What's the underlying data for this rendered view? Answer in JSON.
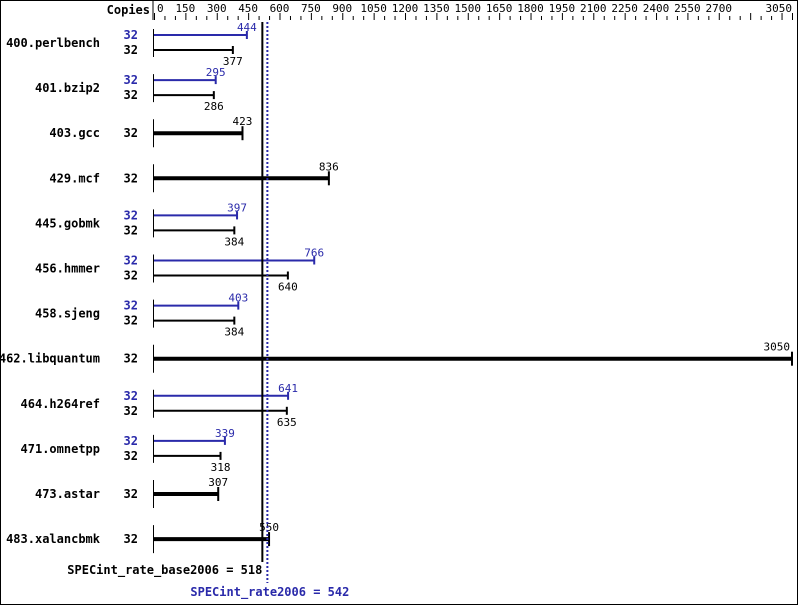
{
  "chart_data": {
    "type": "bar",
    "orientation": "horizontal",
    "axis_label": "Copies",
    "xlim": [
      0,
      3050
    ],
    "ticks": [
      0,
      150,
      300,
      450,
      600,
      750,
      900,
      1050,
      1200,
      1350,
      1500,
      1650,
      1800,
      1950,
      2100,
      2250,
      2400,
      2550,
      2700,
      3050
    ],
    "minor_tick_step": 50,
    "colors": {
      "base": "#000000",
      "peak": "#2a2aaa"
    },
    "benchmarks": [
      {
        "name": "400.perlbench",
        "peak_copies": "32",
        "peak": 444,
        "base_copies": "32",
        "base": 377
      },
      {
        "name": "401.bzip2",
        "peak_copies": "32",
        "peak": 295,
        "base_copies": "32",
        "base": 286
      },
      {
        "name": "403.gcc",
        "base_copies": "32",
        "base": 423
      },
      {
        "name": "429.mcf",
        "base_copies": "32",
        "base": 836
      },
      {
        "name": "445.gobmk",
        "peak_copies": "32",
        "peak": 397,
        "base_copies": "32",
        "base": 384
      },
      {
        "name": "456.hmmer",
        "peak_copies": "32",
        "peak": 766,
        "base_copies": "32",
        "base": 640
      },
      {
        "name": "458.sjeng",
        "peak_copies": "32",
        "peak": 403,
        "base_copies": "32",
        "base": 384
      },
      {
        "name": "462.libquantum",
        "base_copies": "32",
        "base": 3050
      },
      {
        "name": "464.h264ref",
        "peak_copies": "32",
        "peak": 641,
        "base_copies": "32",
        "base": 635
      },
      {
        "name": "471.omnetpp",
        "peak_copies": "32",
        "peak": 339,
        "base_copies": "32",
        "base": 318
      },
      {
        "name": "473.astar",
        "base_copies": "32",
        "base": 307
      },
      {
        "name": "483.xalancbmk",
        "base_copies": "32",
        "base": 550
      }
    ],
    "base_summary": {
      "label": "SPECint_rate_base2006 = 518",
      "value": 518
    },
    "peak_summary": {
      "label": "SPECint_rate2006 = 542",
      "value": 542
    }
  }
}
